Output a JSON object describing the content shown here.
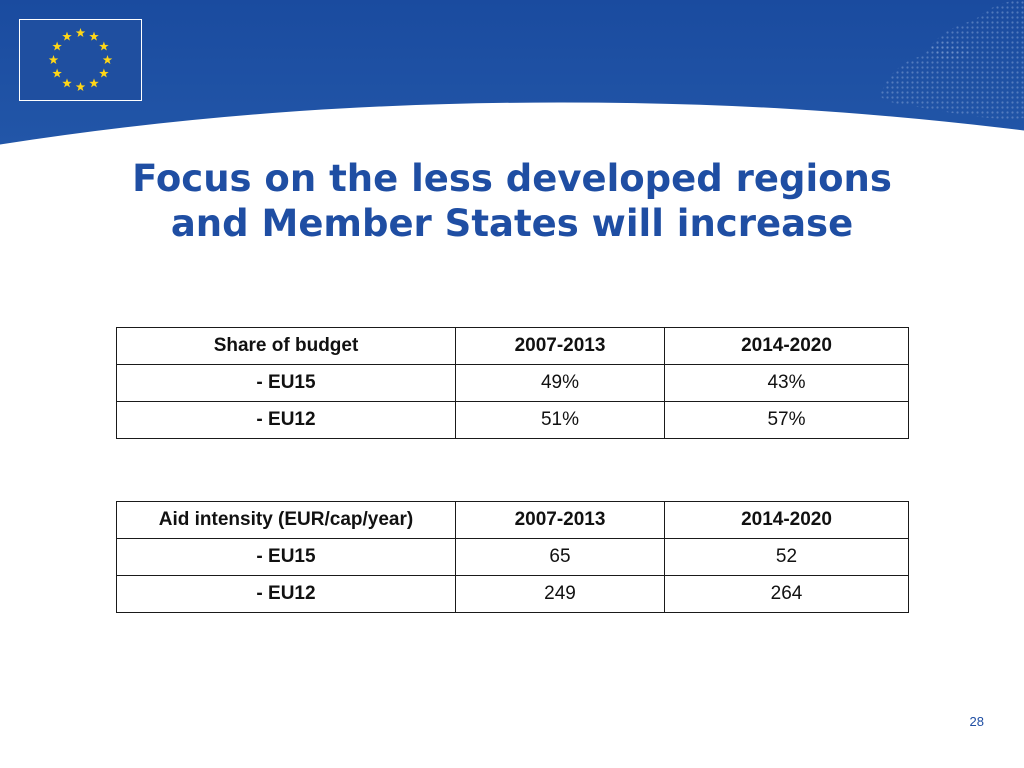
{
  "slide": {
    "title_line1": "Focus on the less developed regions",
    "title_line2": "and Member States will increase",
    "page_number": "28",
    "colors": {
      "header_blue": "#1f4ea3",
      "title_blue": "#1f4ea3",
      "flag_star_yellow": "#ffd617"
    },
    "logo_icon": "eu-flag-icon"
  },
  "budget_table": {
    "headers": [
      "Share of budget",
      "2007-2013",
      "2014-2020"
    ],
    "rows": [
      {
        "label": "- EU15",
        "v1": "49%",
        "v2": "43%"
      },
      {
        "label": "- EU12",
        "v1": "51%",
        "v2": "57%"
      }
    ]
  },
  "aid_table": {
    "headers": [
      "Aid intensity (EUR/cap/year)",
      "2007-2013",
      "2014-2020"
    ],
    "rows": [
      {
        "label": "- EU15",
        "v1": "65",
        "v2": "52"
      },
      {
        "label": "- EU12",
        "v1": "249",
        "v2": "264"
      }
    ]
  }
}
